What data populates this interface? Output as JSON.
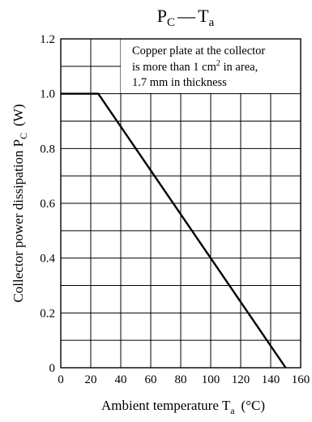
{
  "chart_data": {
    "type": "line",
    "title": {
      "main": "P",
      "main_sub": "C",
      "dash": "—",
      "rhs": "T",
      "rhs_sub": "a"
    },
    "xlabel": {
      "text": "Ambient temperature  T",
      "sub": "a",
      "unit": "(°C)"
    },
    "ylabel": {
      "text": "Collector power dissipation  P",
      "sub": "C",
      "unit": "(W)"
    },
    "xlim": [
      0,
      160
    ],
    "ylim": [
      0,
      1.2
    ],
    "x_ticks": [
      0,
      20,
      40,
      60,
      80,
      100,
      120,
      140,
      160
    ],
    "y_ticks": [
      "0",
      "0.2",
      "0.4",
      "0.6",
      "0.8",
      "1.0",
      "1.2"
    ],
    "grid": true,
    "series": [
      {
        "x": [
          0,
          25,
          150
        ],
        "y": [
          1.0,
          1.0,
          0
        ]
      }
    ],
    "annotation": {
      "line1": "Copper plate at the collector",
      "line2_pre": "is more than 1 cm",
      "line2_sup": "2",
      "line2_post": " in area,",
      "line3": "1.7 mm in thickness"
    }
  }
}
